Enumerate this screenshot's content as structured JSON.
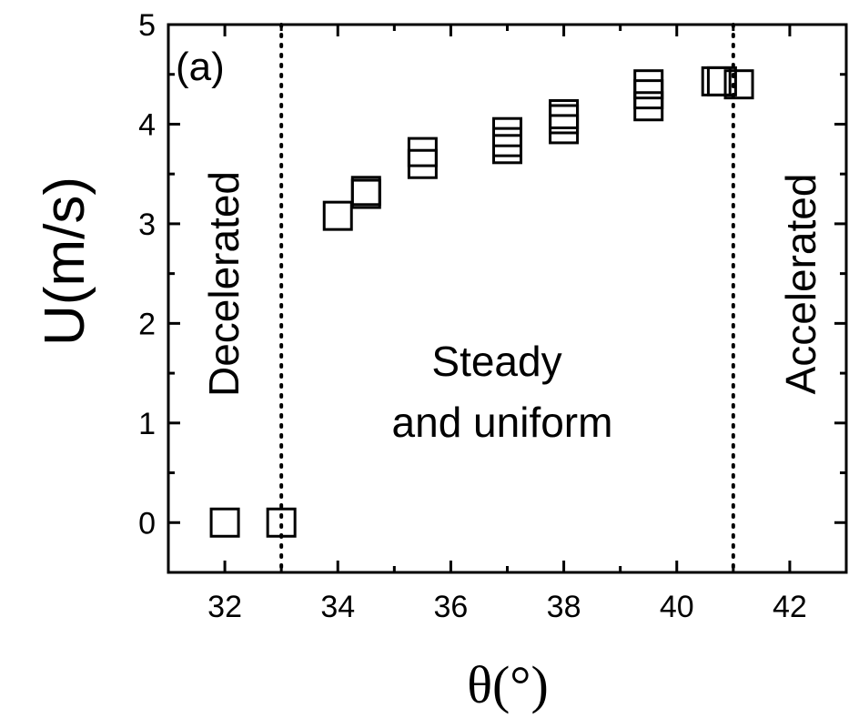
{
  "chart_data": {
    "type": "scatter",
    "panel_label": "(a)",
    "xlabel": "θ(°)",
    "ylabel": "U(m/s)",
    "xlim": [
      31,
      43
    ],
    "ylim": [
      -0.5,
      5
    ],
    "x_ticks": [
      32,
      34,
      36,
      38,
      40,
      42
    ],
    "y_ticks": [
      0,
      1,
      2,
      3,
      4,
      5
    ],
    "x_tick_labels": [
      "32",
      "34",
      "36",
      "38",
      "40",
      "42"
    ],
    "y_tick_labels": [
      "0",
      "1",
      "2",
      "3",
      "4",
      "5"
    ],
    "marker": "open-square",
    "points": [
      {
        "x": 32.0,
        "y": 0.0
      },
      {
        "x": 33.0,
        "y": 0.0
      },
      {
        "x": 34.0,
        "y": 3.08
      },
      {
        "x": 34.5,
        "y": 3.3
      },
      {
        "x": 34.5,
        "y": 3.33
      },
      {
        "x": 35.5,
        "y": 3.6
      },
      {
        "x": 35.5,
        "y": 3.72
      },
      {
        "x": 37.0,
        "y": 3.75
      },
      {
        "x": 37.0,
        "y": 3.82
      },
      {
        "x": 37.0,
        "y": 3.92
      },
      {
        "x": 38.0,
        "y": 3.95
      },
      {
        "x": 38.0,
        "y": 4.05
      },
      {
        "x": 38.0,
        "y": 4.1
      },
      {
        "x": 39.5,
        "y": 4.18
      },
      {
        "x": 39.5,
        "y": 4.3
      },
      {
        "x": 39.5,
        "y": 4.4
      },
      {
        "x": 40.7,
        "y": 4.43
      },
      {
        "x": 40.8,
        "y": 4.43
      },
      {
        "x": 41.1,
        "y": 4.4
      }
    ],
    "boundaries": [
      33.0,
      41.0
    ],
    "regions": [
      {
        "label": "Decelerated",
        "orientation": "vertical"
      },
      {
        "label_lines": [
          "Steady",
          "and uniform"
        ],
        "orientation": "horizontal"
      },
      {
        "label": "Accelerated",
        "orientation": "vertical"
      }
    ],
    "grid": false,
    "legend": "none"
  }
}
